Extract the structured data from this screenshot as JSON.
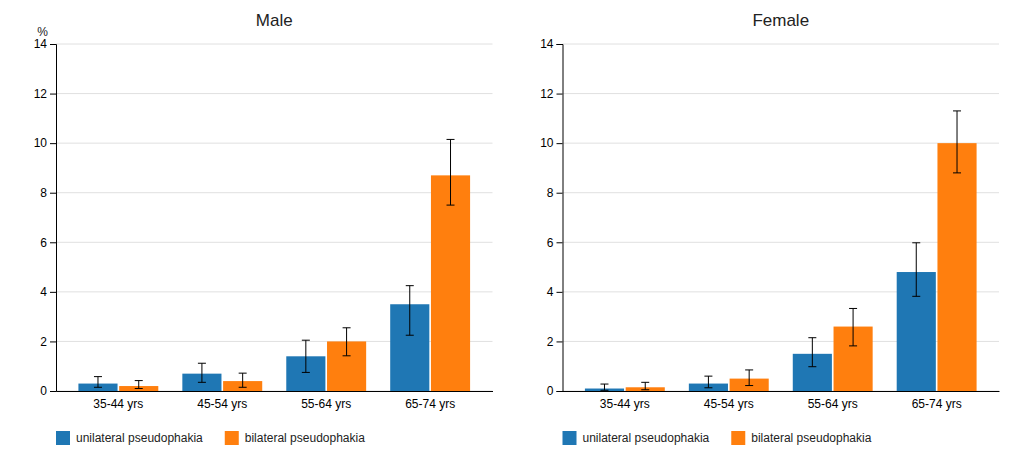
{
  "chart_data": [
    {
      "type": "bar",
      "title": "Male",
      "ylabel": "%",
      "categories": [
        "35-44 yrs",
        "45-54 yrs",
        "55-64 yrs",
        "65-74 yrs"
      ],
      "series": [
        {
          "name": "unilateral pseudophakia",
          "values": [
            0.3,
            0.7,
            1.4,
            3.5
          ],
          "err_lo": [
            0.15,
            0.35,
            0.65,
            1.25
          ],
          "err_hi": [
            0.28,
            0.42,
            0.65,
            0.75
          ]
        },
        {
          "name": "bilateral pseudophakia",
          "values": [
            0.2,
            0.4,
            2.0,
            8.7
          ],
          "err_lo": [
            0.1,
            0.25,
            0.58,
            1.2
          ],
          "err_hi": [
            0.22,
            0.32,
            0.55,
            1.45
          ]
        }
      ],
      "ylim": [
        0,
        14
      ],
      "yticks": [
        0,
        2,
        4,
        6,
        8,
        10,
        12,
        14
      ],
      "grid": true,
      "legend": "lower left"
    },
    {
      "type": "bar",
      "title": "Female",
      "categories": [
        "35-44 yrs",
        "45-54 yrs",
        "55-64 yrs",
        "65-74 yrs"
      ],
      "series": [
        {
          "name": "unilateral pseudophakia",
          "values": [
            0.1,
            0.3,
            1.5,
            4.8
          ],
          "err_lo": [
            0.07,
            0.17,
            0.52,
            0.98
          ],
          "err_hi": [
            0.18,
            0.3,
            0.65,
            1.18
          ]
        },
        {
          "name": "bilateral pseudophakia",
          "values": [
            0.15,
            0.5,
            2.6,
            10.0
          ],
          "err_lo": [
            0.1,
            0.28,
            0.78,
            1.2
          ],
          "err_hi": [
            0.2,
            0.35,
            0.73,
            1.3
          ]
        }
      ],
      "ylim": [
        0,
        14
      ],
      "yticks": [
        0,
        2,
        4,
        6,
        8,
        10,
        12,
        14
      ],
      "grid": true,
      "legend": "lower left"
    }
  ]
}
